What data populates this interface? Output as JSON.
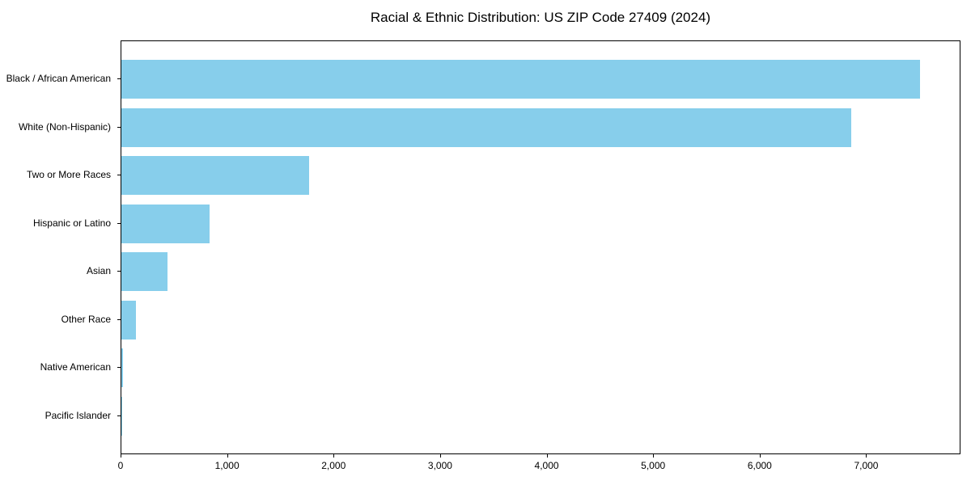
{
  "chart_data": {
    "type": "bar",
    "orientation": "horizontal",
    "title": "Racial & Ethnic Distribution: US ZIP Code 27409 (2024)",
    "categories": [
      "Black / African American",
      "White (Non-Hispanic)",
      "Two or More Races",
      "Hispanic or Latino",
      "Asian",
      "Other Race",
      "Native American",
      "Pacific Islander"
    ],
    "values": [
      7500,
      6850,
      1760,
      830,
      430,
      135,
      15,
      5
    ],
    "xlabel": "",
    "ylabel": "",
    "xlim": [
      0,
      7870
    ],
    "xticks": [
      0,
      1000,
      2000,
      3000,
      4000,
      5000,
      6000,
      7000
    ],
    "xtick_labels": [
      "0",
      "1,000",
      "2,000",
      "3,000",
      "4,000",
      "5,000",
      "6,000",
      "7,000"
    ],
    "bar_color": "#87CEEB",
    "grid": false,
    "legend_position": "none"
  }
}
